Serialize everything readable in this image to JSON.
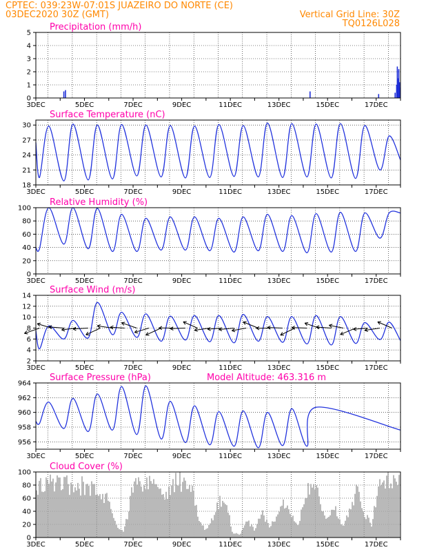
{
  "header": {
    "line1": "CPTEC:   039:23W-07:01S   JUAZEIRO DO NORTE (CE)",
    "line2": "03DEC2020 30Z (GMT)",
    "grid_note": "Vertical Grid Line: 30Z",
    "model_id": "TQ0126L028"
  },
  "colors": {
    "header": "#ff8800",
    "title": "#ff00aa",
    "line": "#2233dd",
    "cloud": "#a8a8a8"
  },
  "chart_data": [
    {
      "type": "bar",
      "title": "Precipitation (mm/h)",
      "ylim": [
        0,
        5
      ],
      "yticks": [
        0,
        1,
        2,
        3,
        4,
        5
      ],
      "xlabels": [
        "3DEC",
        "5DEC",
        "7DEC",
        "9DEC",
        "11DEC",
        "13DEC",
        "15DEC",
        "17DEC"
      ],
      "x_day_range": [
        3,
        18
      ],
      "bars": [
        {
          "day": 4.15,
          "value": 0.5
        },
        {
          "day": 4.22,
          "value": 0.6
        },
        {
          "day": 14.28,
          "value": 0.5
        },
        {
          "day": 17.1,
          "value": 0.3
        },
        {
          "day": 17.78,
          "value": 0.4
        },
        {
          "day": 17.84,
          "value": 1.0
        },
        {
          "day": 17.87,
          "value": 2.4
        },
        {
          "day": 17.9,
          "value": 1.5
        },
        {
          "day": 17.93,
          "value": 2.2
        },
        {
          "day": 17.96,
          "value": 1.2
        },
        {
          "day": 17.99,
          "value": 0.8
        }
      ]
    },
    {
      "type": "line",
      "title": "Surface Temperature (nC)",
      "ylim": [
        18,
        31
      ],
      "yticks": [
        18,
        21,
        24,
        27,
        30
      ],
      "xlabels": [
        "3DEC",
        "5DEC",
        "7DEC",
        "9DEC",
        "11DEC",
        "13DEC",
        "15DEC",
        "17DEC"
      ],
      "x_day_range": [
        3,
        18
      ],
      "peaks": [
        29.8,
        30.2,
        30,
        30.1,
        30,
        29.9,
        29.8,
        30.1,
        29.9,
        30.4,
        30.3,
        30.2,
        30.3,
        29.9,
        27.8
      ],
      "troughs": [
        19.5,
        18.8,
        19.0,
        19.2,
        19.8,
        19.6,
        19.4,
        19.5,
        19.7,
        19.6,
        19.5,
        19.6,
        19.4,
        19.3,
        21.0
      ],
      "start": 26.5,
      "end": 23.0
    },
    {
      "type": "line",
      "title": "Relative Humidity (%)",
      "ylim": [
        0,
        100
      ],
      "yticks": [
        0,
        20,
        40,
        60,
        80,
        100
      ],
      "xlabels": [
        "3DEC",
        "5DEC",
        "7DEC",
        "9DEC",
        "11DEC",
        "13DEC",
        "15DEC",
        "17DEC"
      ],
      "x_day_range": [
        3,
        18
      ],
      "peaks": [
        100,
        100,
        99,
        90,
        84,
        86,
        86,
        84,
        86,
        90,
        88,
        91,
        93,
        92,
        92
      ],
      "troughs": [
        38,
        45,
        38,
        34,
        34,
        36,
        36,
        35,
        33,
        35,
        34,
        32,
        33,
        34,
        54
      ],
      "start": 40,
      "end": 92
    },
    {
      "type": "line",
      "title": "Surface Wind (m/s)",
      "ylim": [
        2,
        14
      ],
      "yticks": [
        2,
        4,
        6,
        8,
        10,
        12,
        14
      ],
      "xlabels": [
        "3DEC",
        "5DEC",
        "7DEC",
        "9DEC",
        "11DEC",
        "13DEC",
        "15DEC",
        "17DEC"
      ],
      "x_day_range": [
        3,
        18
      ],
      "peaks": [
        8.4,
        9.4,
        12.7,
        10.9,
        10.6,
        10.2,
        10.3,
        10.3,
        10.5,
        10.1,
        10.1,
        10.3,
        10.1,
        9.0,
        9.1
      ],
      "troughs": [
        4.2,
        6.0,
        6.2,
        6.8,
        6.3,
        5.6,
        5.8,
        5.5,
        5.3,
        5.6,
        5.4,
        5.1,
        4.9,
        5.2,
        5.9
      ],
      "start": 7.6,
      "end": 5.7,
      "arrows_note": "wind direction vectors drawn along 8 m/s"
    },
    {
      "type": "line",
      "title": "Surface Pressure (hPa)",
      "annotation": "Model Altitude: 463.316 m",
      "ylim": [
        955,
        964
      ],
      "yticks": [
        956,
        958,
        960,
        962,
        964
      ],
      "xlabels": [
        "3DEC",
        "5DEC",
        "7DEC",
        "9DEC",
        "11DEC",
        "13DEC",
        "15DEC",
        "17DEC"
      ],
      "x_day_range": [
        3,
        18
      ],
      "peaks": [
        961.4,
        961.9,
        962.5,
        963.5,
        963.6,
        961.5,
        960.9,
        960.1,
        960.2,
        960.0,
        960.5,
        960.7
      ],
      "troughs": [
        958.5,
        957.8,
        957.4,
        957.6,
        957.0,
        956.4,
        955.9,
        955.6,
        955.4,
        955.2,
        955.5,
        955.4
      ],
      "start": 958.8,
      "end": 957.6
    },
    {
      "type": "area",
      "title": "Cloud Cover (%)",
      "ylim": [
        0,
        100
      ],
      "yticks": [
        0,
        20,
        40,
        60,
        80,
        100
      ],
      "xlabels": [
        "3DEC",
        "5DEC",
        "7DEC",
        "9DEC",
        "11DEC",
        "13DEC",
        "15DEC",
        "17DEC"
      ],
      "x_day_range": [
        3,
        18
      ],
      "profile": [
        {
          "day": 3.0,
          "value": 78
        },
        {
          "day": 3.3,
          "value": 92
        },
        {
          "day": 3.6,
          "value": 88
        },
        {
          "day": 3.9,
          "value": 95
        },
        {
          "day": 4.3,
          "value": 90
        },
        {
          "day": 4.6,
          "value": 70
        },
        {
          "day": 4.9,
          "value": 85
        },
        {
          "day": 5.2,
          "value": 78
        },
        {
          "day": 5.6,
          "value": 80
        },
        {
          "day": 6.0,
          "value": 60
        },
        {
          "day": 6.3,
          "value": 20
        },
        {
          "day": 6.6,
          "value": 10
        },
        {
          "day": 6.8,
          "value": 40
        },
        {
          "day": 7.0,
          "value": 88
        },
        {
          "day": 7.5,
          "value": 89
        },
        {
          "day": 8.0,
          "value": 88
        },
        {
          "day": 8.3,
          "value": 65
        },
        {
          "day": 8.6,
          "value": 90
        },
        {
          "day": 9.0,
          "value": 92
        },
        {
          "day": 9.4,
          "value": 85
        },
        {
          "day": 9.7,
          "value": 30
        },
        {
          "day": 10.0,
          "value": 12
        },
        {
          "day": 10.3,
          "value": 35
        },
        {
          "day": 10.6,
          "value": 62
        },
        {
          "day": 10.9,
          "value": 45
        },
        {
          "day": 11.1,
          "value": 8
        },
        {
          "day": 11.4,
          "value": 5
        },
        {
          "day": 11.7,
          "value": 28
        },
        {
          "day": 12.0,
          "value": 12
        },
        {
          "day": 12.3,
          "value": 40
        },
        {
          "day": 12.6,
          "value": 18
        },
        {
          "day": 12.9,
          "value": 32
        },
        {
          "day": 13.2,
          "value": 58
        },
        {
          "day": 13.5,
          "value": 38
        },
        {
          "day": 13.8,
          "value": 22
        },
        {
          "day": 14.1,
          "value": 78
        },
        {
          "day": 14.4,
          "value": 90
        },
        {
          "day": 14.7,
          "value": 60
        },
        {
          "day": 15.0,
          "value": 28
        },
        {
          "day": 15.3,
          "value": 52
        },
        {
          "day": 15.6,
          "value": 18
        },
        {
          "day": 15.9,
          "value": 42
        },
        {
          "day": 16.2,
          "value": 78
        },
        {
          "day": 16.5,
          "value": 42
        },
        {
          "day": 16.8,
          "value": 20
        },
        {
          "day": 17.1,
          "value": 78
        },
        {
          "day": 17.4,
          "value": 96
        },
        {
          "day": 17.7,
          "value": 88
        },
        {
          "day": 18.0,
          "value": 98
        }
      ]
    }
  ]
}
